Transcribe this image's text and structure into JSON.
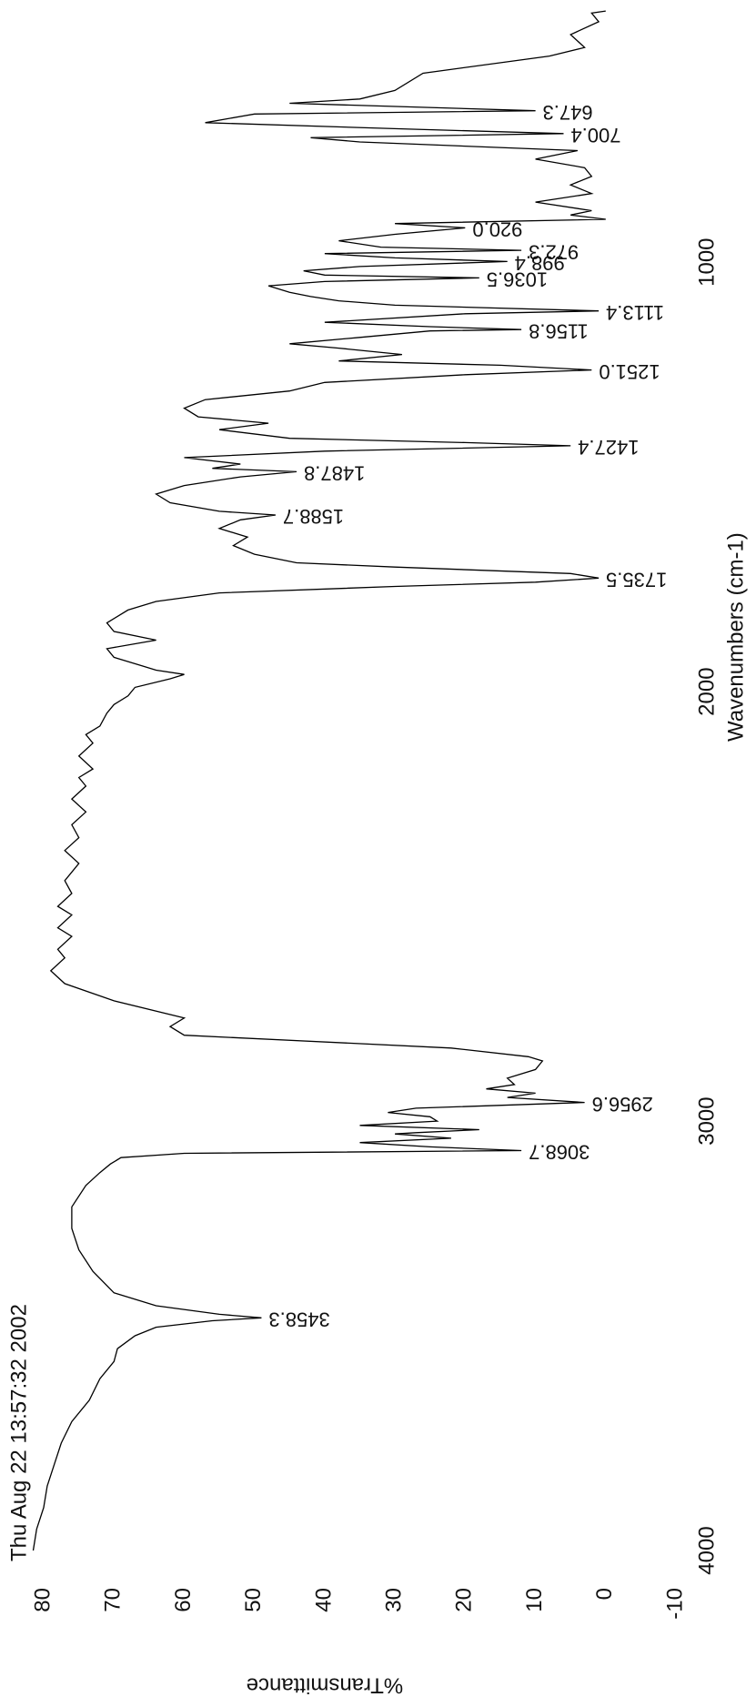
{
  "chart_data": {
    "type": "line",
    "timestamp": "Thu Aug 22 13:57:32 2002",
    "xlabel": "Wavenumbers (cm-1)",
    "ylabel": "%Transmittance",
    "xlim": [
      4000,
      400
    ],
    "ylim": [
      -10,
      82
    ],
    "xticks": [
      4000,
      3000,
      2000,
      1000
    ],
    "yticks": [
      80,
      70,
      60,
      50,
      40,
      30,
      20,
      10,
      0,
      -10
    ],
    "series": [
      {
        "color": "#000000",
        "x": [
          4000,
          3950,
          3900,
          3850,
          3800,
          3750,
          3700,
          3650,
          3600,
          3560,
          3530,
          3500,
          3480,
          3465,
          3458.3,
          3450,
          3430,
          3400,
          3350,
          3300,
          3250,
          3200,
          3150,
          3120,
          3100,
          3085,
          3075,
          3068.7,
          3060,
          3050,
          3040,
          3030,
          3027,
          3020,
          3010,
          3000,
          2990,
          2980,
          2970,
          2956.6,
          2945,
          2935,
          2925,
          2915,
          2900,
          2880,
          2860,
          2850,
          2830,
          2800,
          2780,
          2760,
          2720,
          2680,
          2650,
          2620,
          2600,
          2570,
          2550,
          2520,
          2500,
          2470,
          2440,
          2400,
          2370,
          2340,
          2310,
          2280,
          2250,
          2220,
          2200,
          2180,
          2150,
          2120,
          2100,
          2080,
          2050,
          2030,
          2010,
          1990,
          1970,
          1960,
          1950,
          1940,
          1920,
          1900,
          1880,
          1860,
          1840,
          1810,
          1790,
          1770,
          1755,
          1745,
          1735.5,
          1725,
          1710,
          1700,
          1680,
          1660,
          1640,
          1620,
          1600,
          1588.7,
          1580,
          1560,
          1540,
          1520,
          1500,
          1487.8,
          1480,
          1470,
          1455,
          1440,
          1427.4,
          1420,
          1410,
          1390,
          1375,
          1360,
          1340,
          1320,
          1300,
          1280,
          1262,
          1251,
          1240,
          1230,
          1215,
          1200,
          1190,
          1175,
          1160,
          1156.8,
          1150,
          1140,
          1120,
          1113.4,
          1100,
          1090,
          1080,
          1070,
          1055,
          1045,
          1036.5,
          1030,
          1020,
          1010,
          998.4,
          990,
          980,
          972.3,
          965,
          950,
          935,
          920,
          910,
          900,
          890,
          880,
          860,
          840,
          820,
          800,
          780,
          760,
          740,
          720,
          710,
          700.4,
          690,
          675,
          655,
          647.3,
          630,
          620,
          600,
          560,
          520,
          500,
          470,
          440,
          420,
          415
        ],
        "values": [
          81.5,
          81,
          80,
          79.5,
          78.5,
          77.5,
          76,
          73.5,
          72,
          70,
          69.5,
          67,
          64,
          56,
          49,
          55,
          64,
          70,
          73,
          75,
          76,
          76,
          74,
          72,
          70.5,
          69,
          60,
          12,
          25,
          35,
          22,
          30,
          27,
          18,
          35,
          24,
          25,
          31,
          27,
          3,
          14,
          10,
          17,
          13,
          14,
          10,
          9,
          11,
          22,
          60,
          62,
          60,
          70,
          77,
          79,
          77,
          78,
          76,
          78,
          76,
          78,
          76,
          77,
          75,
          77,
          75,
          76,
          74,
          76,
          74,
          75,
          73,
          75,
          73,
          74,
          72,
          71,
          70,
          68,
          67,
          62,
          60,
          64,
          66,
          70,
          71,
          64,
          70,
          71,
          68,
          64,
          55,
          30,
          10,
          1,
          5,
          30,
          44,
          50,
          53,
          51,
          55,
          52,
          47,
          55,
          62,
          64,
          60,
          52,
          44,
          56,
          52,
          60,
          40,
          5,
          20,
          45,
          55,
          48,
          58,
          60,
          57,
          45,
          40,
          20,
          2,
          15,
          38,
          29,
          38,
          45,
          35,
          25,
          12,
          25,
          40,
          20,
          1,
          30,
          38,
          42,
          45,
          48,
          40,
          18,
          40,
          43,
          35,
          14,
          30,
          40,
          12,
          32,
          38,
          30,
          20,
          30,
          0,
          5,
          2,
          10,
          2,
          5,
          2,
          3,
          10,
          4,
          35,
          42,
          6,
          28,
          57,
          50,
          10,
          45,
          35,
          30,
          26,
          8,
          3,
          5,
          1,
          2,
          0
        ]
      }
    ],
    "annotations": [
      {
        "text": "3458.3",
        "x": 3458.3
      },
      {
        "text": "3068.7",
        "x": 3068.7
      },
      {
        "text": "2956.6",
        "x": 2956.6
      },
      {
        "text": "1735.5",
        "x": 1735.5
      },
      {
        "text": "1588.7",
        "x": 1588.7
      },
      {
        "text": "1487.8",
        "x": 1487.8
      },
      {
        "text": "1427.4",
        "x": 1427.4
      },
      {
        "text": "1251.0",
        "x": 1251
      },
      {
        "text": "1156.8",
        "x": 1156.8
      },
      {
        "text": "1113.4",
        "x": 1113.4
      },
      {
        "text": "1036.5",
        "x": 1036.5
      },
      {
        "text": "998.4",
        "x": 998.4
      },
      {
        "text": "972.3",
        "x": 972.3
      },
      {
        "text": "920.0",
        "x": 920
      },
      {
        "text": "700.4",
        "x": 700.4
      },
      {
        "text": "647.3",
        "x": 647.3
      }
    ]
  }
}
